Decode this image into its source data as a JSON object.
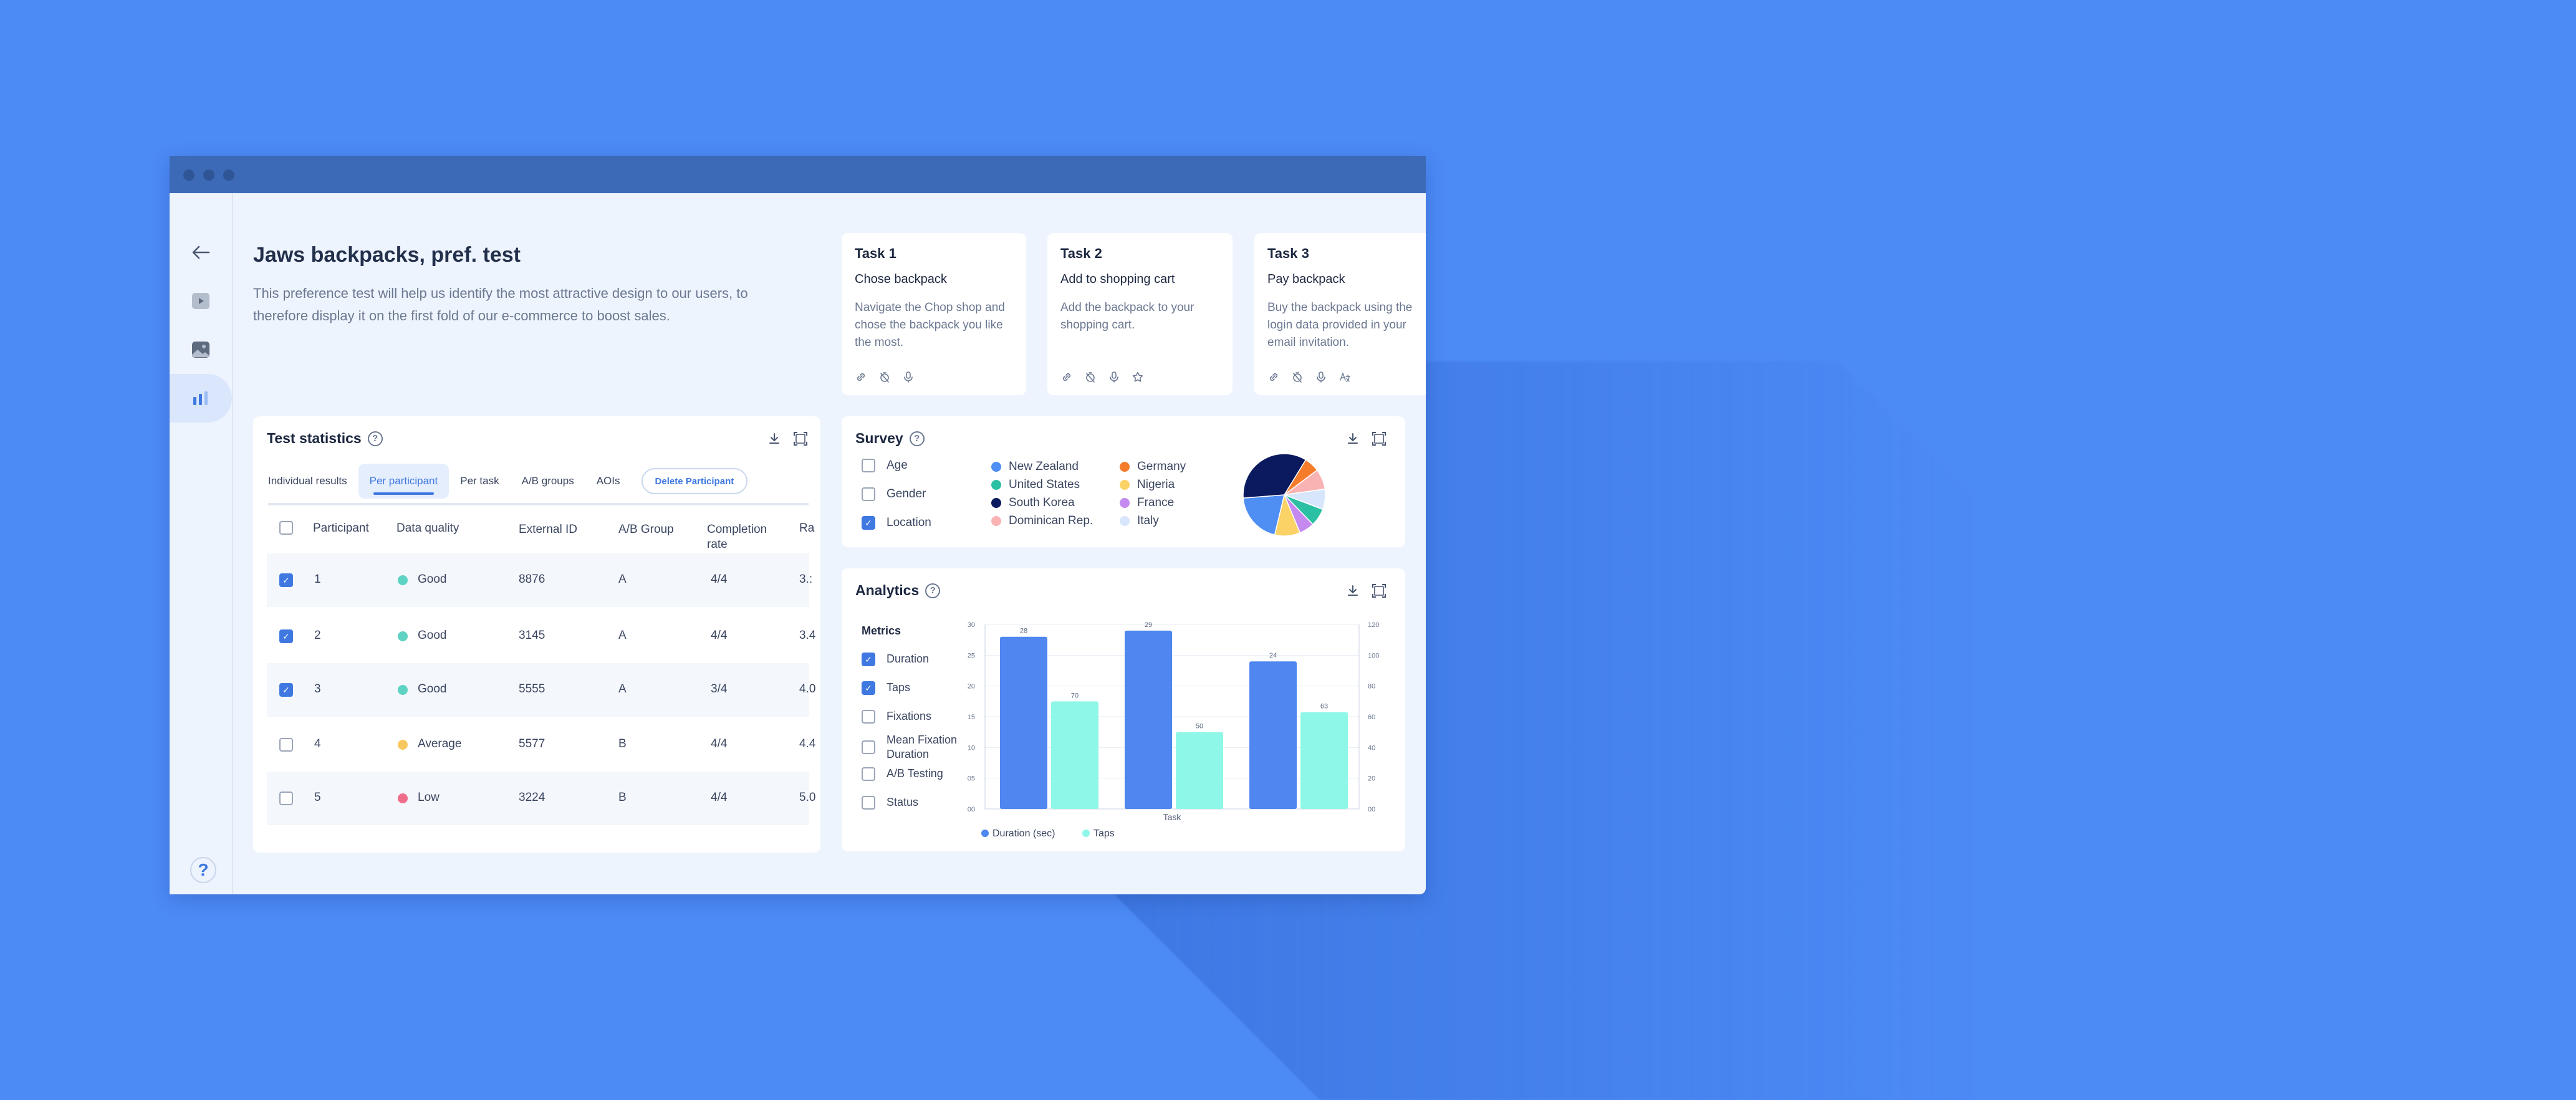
{
  "window": {
    "bg": "#eef4fd",
    "titlebar": "#3c6ab6"
  },
  "sidebar": {
    "items": [
      {
        "icon": "back-arrow-icon"
      },
      {
        "icon": "video-icon"
      },
      {
        "icon": "image-icon"
      },
      {
        "icon": "bar-chart-icon",
        "active": true
      }
    ],
    "help_label": "?"
  },
  "header": {
    "title": "Jaws backpacks, pref. test",
    "description": "This preference test will help us identify the most attractive design to our users, to therefore display it on the first fold of our e-commerce to boost sales."
  },
  "tasks": [
    {
      "title": "Task 1",
      "subtitle": "Chose backpack",
      "description": "Navigate the Chop shop and chose the backpack you like the most.",
      "icons": [
        "link-icon",
        "timer-off-icon",
        "mic-icon"
      ]
    },
    {
      "title": "Task 2",
      "subtitle": "Add to shopping cart",
      "description": "Add the backpack to your shopping cart.",
      "icons": [
        "link-icon",
        "timer-off-icon",
        "mic-icon",
        "star-icon"
      ]
    },
    {
      "title": "Task 3",
      "subtitle": "Pay backpack",
      "description": "Buy the backpack using the login data provided in your email invitation.",
      "icons": [
        "link-icon",
        "timer-off-icon",
        "mic-icon",
        "translate-icon"
      ]
    }
  ],
  "stats": {
    "title": "Test statistics",
    "tabs": [
      "Individual results",
      "Per participant",
      "Per task",
      "A/B groups",
      "AOIs"
    ],
    "active_tab": 1,
    "delete_label": "Delete Participant",
    "columns": [
      "Participant",
      "Data quality",
      "External ID",
      "A/B Group",
      "Completion rate",
      "Ra"
    ],
    "rows": [
      {
        "checked": true,
        "participant": "1",
        "quality": "Good",
        "quality_color": "#5ed3c3",
        "external_id": "8876",
        "group": "A",
        "completion": "4/4",
        "rate": "3.:"
      },
      {
        "checked": true,
        "participant": "2",
        "quality": "Good",
        "quality_color": "#5ed3c3",
        "external_id": "3145",
        "group": "A",
        "completion": "4/4",
        "rate": "3.4"
      },
      {
        "checked": true,
        "participant": "3",
        "quality": "Good",
        "quality_color": "#5ed3c3",
        "external_id": "5555",
        "group": "A",
        "completion": "3/4",
        "rate": "4.0"
      },
      {
        "checked": false,
        "participant": "4",
        "quality": "Average",
        "quality_color": "#f8c860",
        "external_id": "5577",
        "group": "B",
        "completion": "4/4",
        "rate": "4.4"
      },
      {
        "checked": false,
        "participant": "5",
        "quality": "Low",
        "quality_color": "#ef6f8a",
        "external_id": "3224",
        "group": "B",
        "completion": "4/4",
        "rate": "5.0"
      }
    ]
  },
  "survey": {
    "title": "Survey",
    "options": [
      {
        "label": "Age",
        "checked": false
      },
      {
        "label": "Gender",
        "checked": false
      },
      {
        "label": "Location",
        "checked": true
      }
    ],
    "legend": [
      {
        "label": "New Zealand",
        "color": "#4f8ef2"
      },
      {
        "label": "United States",
        "color": "#2bbfa3"
      },
      {
        "label": "South Korea",
        "color": "#0b1a5e"
      },
      {
        "label": "Dominican Rep.",
        "color": "#f9b3b3"
      },
      {
        "label": "Germany",
        "color": "#f57c2b"
      },
      {
        "label": "Nigeria",
        "color": "#fbd266"
      },
      {
        "label": "France",
        "color": "#c48af0"
      },
      {
        "label": "Italy",
        "color": "#d8e6fb"
      }
    ]
  },
  "analytics": {
    "title": "Analytics",
    "metrics_label": "Metrics",
    "metrics": [
      {
        "label": "Duration",
        "checked": true
      },
      {
        "label": "Taps",
        "checked": true
      },
      {
        "label": "Fixations",
        "checked": false
      },
      {
        "label": "Mean Fixation Duration",
        "checked": false
      },
      {
        "label": "A/B Testing",
        "checked": false
      },
      {
        "label": "Status",
        "checked": false
      }
    ]
  },
  "chart_data": [
    {
      "type": "pie",
      "labels": [
        "Germany",
        "Dominican Rep.",
        "Italy",
        "United States",
        "France",
        "Nigeria",
        "New Zealand",
        "South Korea"
      ],
      "values": [
        6,
        8,
        8,
        7,
        6,
        10,
        20,
        35
      ],
      "colors": [
        "#f57c2b",
        "#f9b3b3",
        "#d8e6fb",
        "#2bbfa3",
        "#c48af0",
        "#fbd266",
        "#4f8ef2",
        "#0b1a5e"
      ]
    },
    {
      "type": "bar",
      "xlabel": "Task",
      "categories": [
        "",
        "",
        ""
      ],
      "series": [
        {
          "name": "Duration (sec)",
          "values": [
            28,
            29,
            24
          ],
          "color": "#4f86ef",
          "axis": "left"
        },
        {
          "name": "Taps",
          "values": [
            70,
            50,
            63
          ],
          "color": "#8ff7e7",
          "axis": "right"
        }
      ],
      "ylim_left": [
        0,
        30
      ],
      "ylim_right": [
        0,
        120
      ],
      "yticks_left": [
        "00",
        "05",
        "10",
        "15",
        "20",
        "25",
        "30"
      ],
      "yticks_right": [
        "00",
        "20",
        "40",
        "60",
        "80",
        "100",
        "120"
      ],
      "grid": true,
      "legend": "bottom"
    }
  ]
}
